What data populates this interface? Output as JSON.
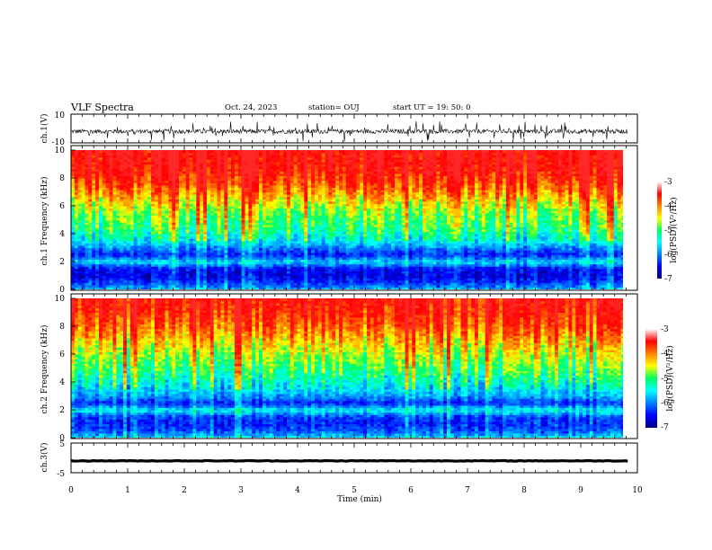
{
  "header": {
    "title": "VLF Spectra",
    "date": "Oct. 24, 2023",
    "station": "station= OUJ",
    "start": "start  UT =  19: 50: 0"
  },
  "chart_data": [
    {
      "type": "line",
      "name": "ch1-waveform",
      "ylabel": "ch.1(V)",
      "ylim": [
        -10,
        10
      ],
      "yticks": [
        "10",
        "-10"
      ],
      "xlim": [
        0,
        10
      ],
      "baseline": -2,
      "noise_amplitude": 1.5,
      "spike_amplitude": 4
    },
    {
      "type": "heatmap",
      "name": "ch1-spectrogram",
      "ylabel": "ch.1 Frequency (kHz)",
      "ylim": [
        0,
        10
      ],
      "yticks": [
        "0",
        "2",
        "4",
        "6",
        "8",
        "10"
      ],
      "xlim": [
        0,
        9.83
      ],
      "color_levels": [
        {
          "freq_khz": 0.0,
          "log_psd": -5.8
        },
        {
          "freq_khz": 0.5,
          "log_psd": -6.3
        },
        {
          "freq_khz": 1.0,
          "log_psd": -6.6
        },
        {
          "freq_khz": 1.5,
          "log_psd": -6.5
        },
        {
          "freq_khz": 2.0,
          "log_psd": -5.6
        },
        {
          "freq_khz": 2.5,
          "log_psd": -6.4
        },
        {
          "freq_khz": 3.0,
          "log_psd": -6.0
        },
        {
          "freq_khz": 3.5,
          "log_psd": -5.5
        },
        {
          "freq_khz": 4.5,
          "log_psd": -5.0
        },
        {
          "freq_khz": 5.5,
          "log_psd": -4.8
        },
        {
          "freq_khz": 6.5,
          "log_psd": -4.3
        },
        {
          "freq_khz": 7.5,
          "log_psd": -3.8
        },
        {
          "freq_khz": 8.5,
          "log_psd": -3.4
        },
        {
          "freq_khz": 10.0,
          "log_psd": -3.2
        }
      ],
      "colorbar": {
        "min": -7,
        "max": -3,
        "ticks": [
          "-3",
          "-4",
          "-5",
          "-6",
          "-7"
        ],
        "label": "log(PSD)(V²/Hz)"
      }
    },
    {
      "type": "heatmap",
      "name": "ch2-spectrogram",
      "ylabel": "ch.2 Frequency (kHz)",
      "ylim": [
        0,
        10
      ],
      "yticks": [
        "0",
        "2",
        "4",
        "6",
        "8",
        "10"
      ],
      "xlim": [
        0,
        9.83
      ],
      "color_levels": [
        {
          "freq_khz": 0.0,
          "log_psd": -5.6
        },
        {
          "freq_khz": 0.5,
          "log_psd": -6.2
        },
        {
          "freq_khz": 1.0,
          "log_psd": -6.4
        },
        {
          "freq_khz": 1.5,
          "log_psd": -6.3
        },
        {
          "freq_khz": 2.0,
          "log_psd": -5.5
        },
        {
          "freq_khz": 2.5,
          "log_psd": -6.4
        },
        {
          "freq_khz": 3.0,
          "log_psd": -5.9
        },
        {
          "freq_khz": 4.0,
          "log_psd": -5.4
        },
        {
          "freq_khz": 5.0,
          "log_psd": -5.0
        },
        {
          "freq_khz": 6.0,
          "log_psd": -4.7
        },
        {
          "freq_khz": 7.0,
          "log_psd": -4.3
        },
        {
          "freq_khz": 8.0,
          "log_psd": -3.9
        },
        {
          "freq_khz": 9.0,
          "log_psd": -3.6
        },
        {
          "freq_khz": 10.0,
          "log_psd": -3.4
        }
      ],
      "colorbar": {
        "min": -7,
        "max": -3,
        "ticks": [
          "-3",
          "-4",
          "-5",
          "-6",
          "-7"
        ],
        "label": "log(PSD)(V²/Hz)"
      }
    },
    {
      "type": "line",
      "name": "ch3-waveform",
      "ylabel": "ch.3(V)",
      "ylim": [
        -5,
        5
      ],
      "yticks": [
        "5",
        "-5"
      ],
      "xlim": [
        0,
        9.83
      ],
      "baseline": -1,
      "noise_amplitude": 0.2
    }
  ],
  "xaxis": {
    "label": "Time (min)",
    "ticks": [
      "0",
      "1",
      "2",
      "3",
      "4",
      "5",
      "6",
      "7",
      "8",
      "9",
      "10"
    ],
    "range": [
      0,
      10
    ]
  }
}
